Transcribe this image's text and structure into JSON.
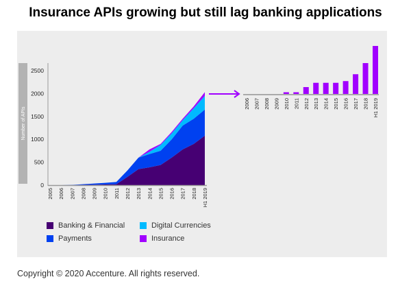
{
  "title": "Insurance APIs growing but still lag banking applications",
  "copyright": "Copyright © 2020 Accenture. All rights reserved.",
  "colors": {
    "banking": "#460073",
    "payments": "#0041f0",
    "digital": "#00baff",
    "insurance": "#a100ff",
    "panel": "#ededed",
    "ylabel_bar": "#b3b3b3"
  },
  "chart_data": [
    {
      "type": "area",
      "stacked": true,
      "ylabel": "Number of APIs",
      "ylim": [
        0,
        2500
      ],
      "yticks": [
        "0",
        "500",
        "1000",
        "1500",
        "2000",
        "2500"
      ],
      "categories": [
        "2005",
        "2006",
        "2007",
        "2008",
        "2009",
        "2010",
        "2011",
        "2012",
        "2013",
        "2014",
        "2015",
        "2016",
        "2017",
        "2018",
        "H1 2019"
      ],
      "series": [
        {
          "name": "Banking & Financial",
          "color": "#460073",
          "values": [
            0,
            0,
            0,
            5,
            10,
            15,
            20,
            180,
            350,
            390,
            440,
            600,
            780,
            900,
            1080
          ]
        },
        {
          "name": "Payments",
          "color": "#0041f0",
          "values": [
            0,
            0,
            5,
            15,
            25,
            35,
            50,
            140,
            250,
            290,
            310,
            400,
            520,
            550,
            570
          ]
        },
        {
          "name": "Digital Currencies",
          "color": "#00baff",
          "values": [
            0,
            0,
            0,
            0,
            0,
            0,
            0,
            0,
            0,
            50,
            130,
            130,
            120,
            230,
            300
          ]
        },
        {
          "name": "Insurance",
          "color": "#a100ff",
          "values": [
            0,
            0,
            0,
            0,
            0,
            0,
            0,
            0,
            0,
            50,
            20,
            30,
            30,
            40,
            80
          ]
        }
      ],
      "legend": "bottom"
    },
    {
      "type": "bar",
      "series_name": "Insurance",
      "color": "#a100ff",
      "categories": [
        "2006",
        "2007",
        "2008",
        "2009",
        "2010",
        "2011",
        "2012",
        "2013",
        "2014",
        "2015",
        "2016",
        "2017",
        "2018",
        "H1 2019"
      ],
      "values": [
        0,
        0,
        0,
        0,
        2,
        2,
        8,
        13,
        13,
        13,
        15,
        23,
        36,
        56
      ]
    }
  ]
}
